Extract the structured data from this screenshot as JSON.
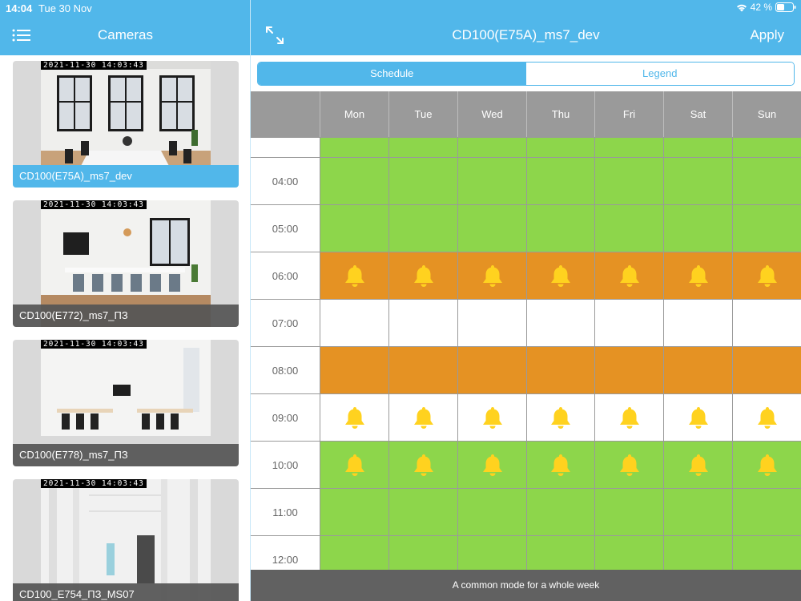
{
  "status": {
    "time": "14:04",
    "date": "Tue 30 Nov",
    "battery": "42 %"
  },
  "left": {
    "title": "Cameras",
    "cameras": [
      {
        "name": "CD100(E75A)_ms7_dev",
        "timestamp": "2021-11-30 14:03:43",
        "selected": true
      },
      {
        "name": "CD100(E772)_ms7_ПЗ",
        "timestamp": "2021-11-30 14:03:43",
        "selected": false
      },
      {
        "name": "CD100(E778)_ms7_ПЗ",
        "timestamp": "2021-11-30 14:03:43",
        "selected": false
      },
      {
        "name": "CD100_E754_ПЗ_MS07",
        "timestamp": "2021-11-30 14:03:43",
        "selected": false
      }
    ]
  },
  "right": {
    "title": "CD100(E75A)_ms7_dev",
    "apply_label": "Apply",
    "tabs": [
      {
        "label": "Schedule",
        "active": true
      },
      {
        "label": "Legend",
        "active": false
      }
    ],
    "days": [
      "Mon",
      "Tue",
      "Wed",
      "Thu",
      "Fri",
      "Sat",
      "Sun"
    ],
    "rows": [
      {
        "time": "",
        "fill": "green",
        "bell": false
      },
      {
        "time": "04:00",
        "fill": "green",
        "bell": false
      },
      {
        "time": "05:00",
        "fill": "green",
        "bell": false
      },
      {
        "time": "06:00",
        "fill": "orange",
        "bell": true
      },
      {
        "time": "07:00",
        "fill": "white",
        "bell": false
      },
      {
        "time": "08:00",
        "fill": "orange",
        "bell": false
      },
      {
        "time": "09:00",
        "fill": "white",
        "bell": true
      },
      {
        "time": "10:00",
        "fill": "green",
        "bell": true
      },
      {
        "time": "11:00",
        "fill": "green",
        "bell": false
      },
      {
        "time": "12:00",
        "fill": "green",
        "bell": false
      }
    ],
    "footer_label": "A common mode for a whole week"
  },
  "colors": {
    "accent": "#51b7ea",
    "green": "#8dd64b",
    "orange": "#e59223",
    "bell": "#ffd21f",
    "header_gray": "#9a9a9a",
    "footer_gray": "#616161"
  },
  "icons": {
    "menu": "list-icon",
    "expand": "expand-arrows-icon",
    "bell": "bell-icon",
    "wifi": "wifi-icon",
    "battery": "battery-icon"
  }
}
